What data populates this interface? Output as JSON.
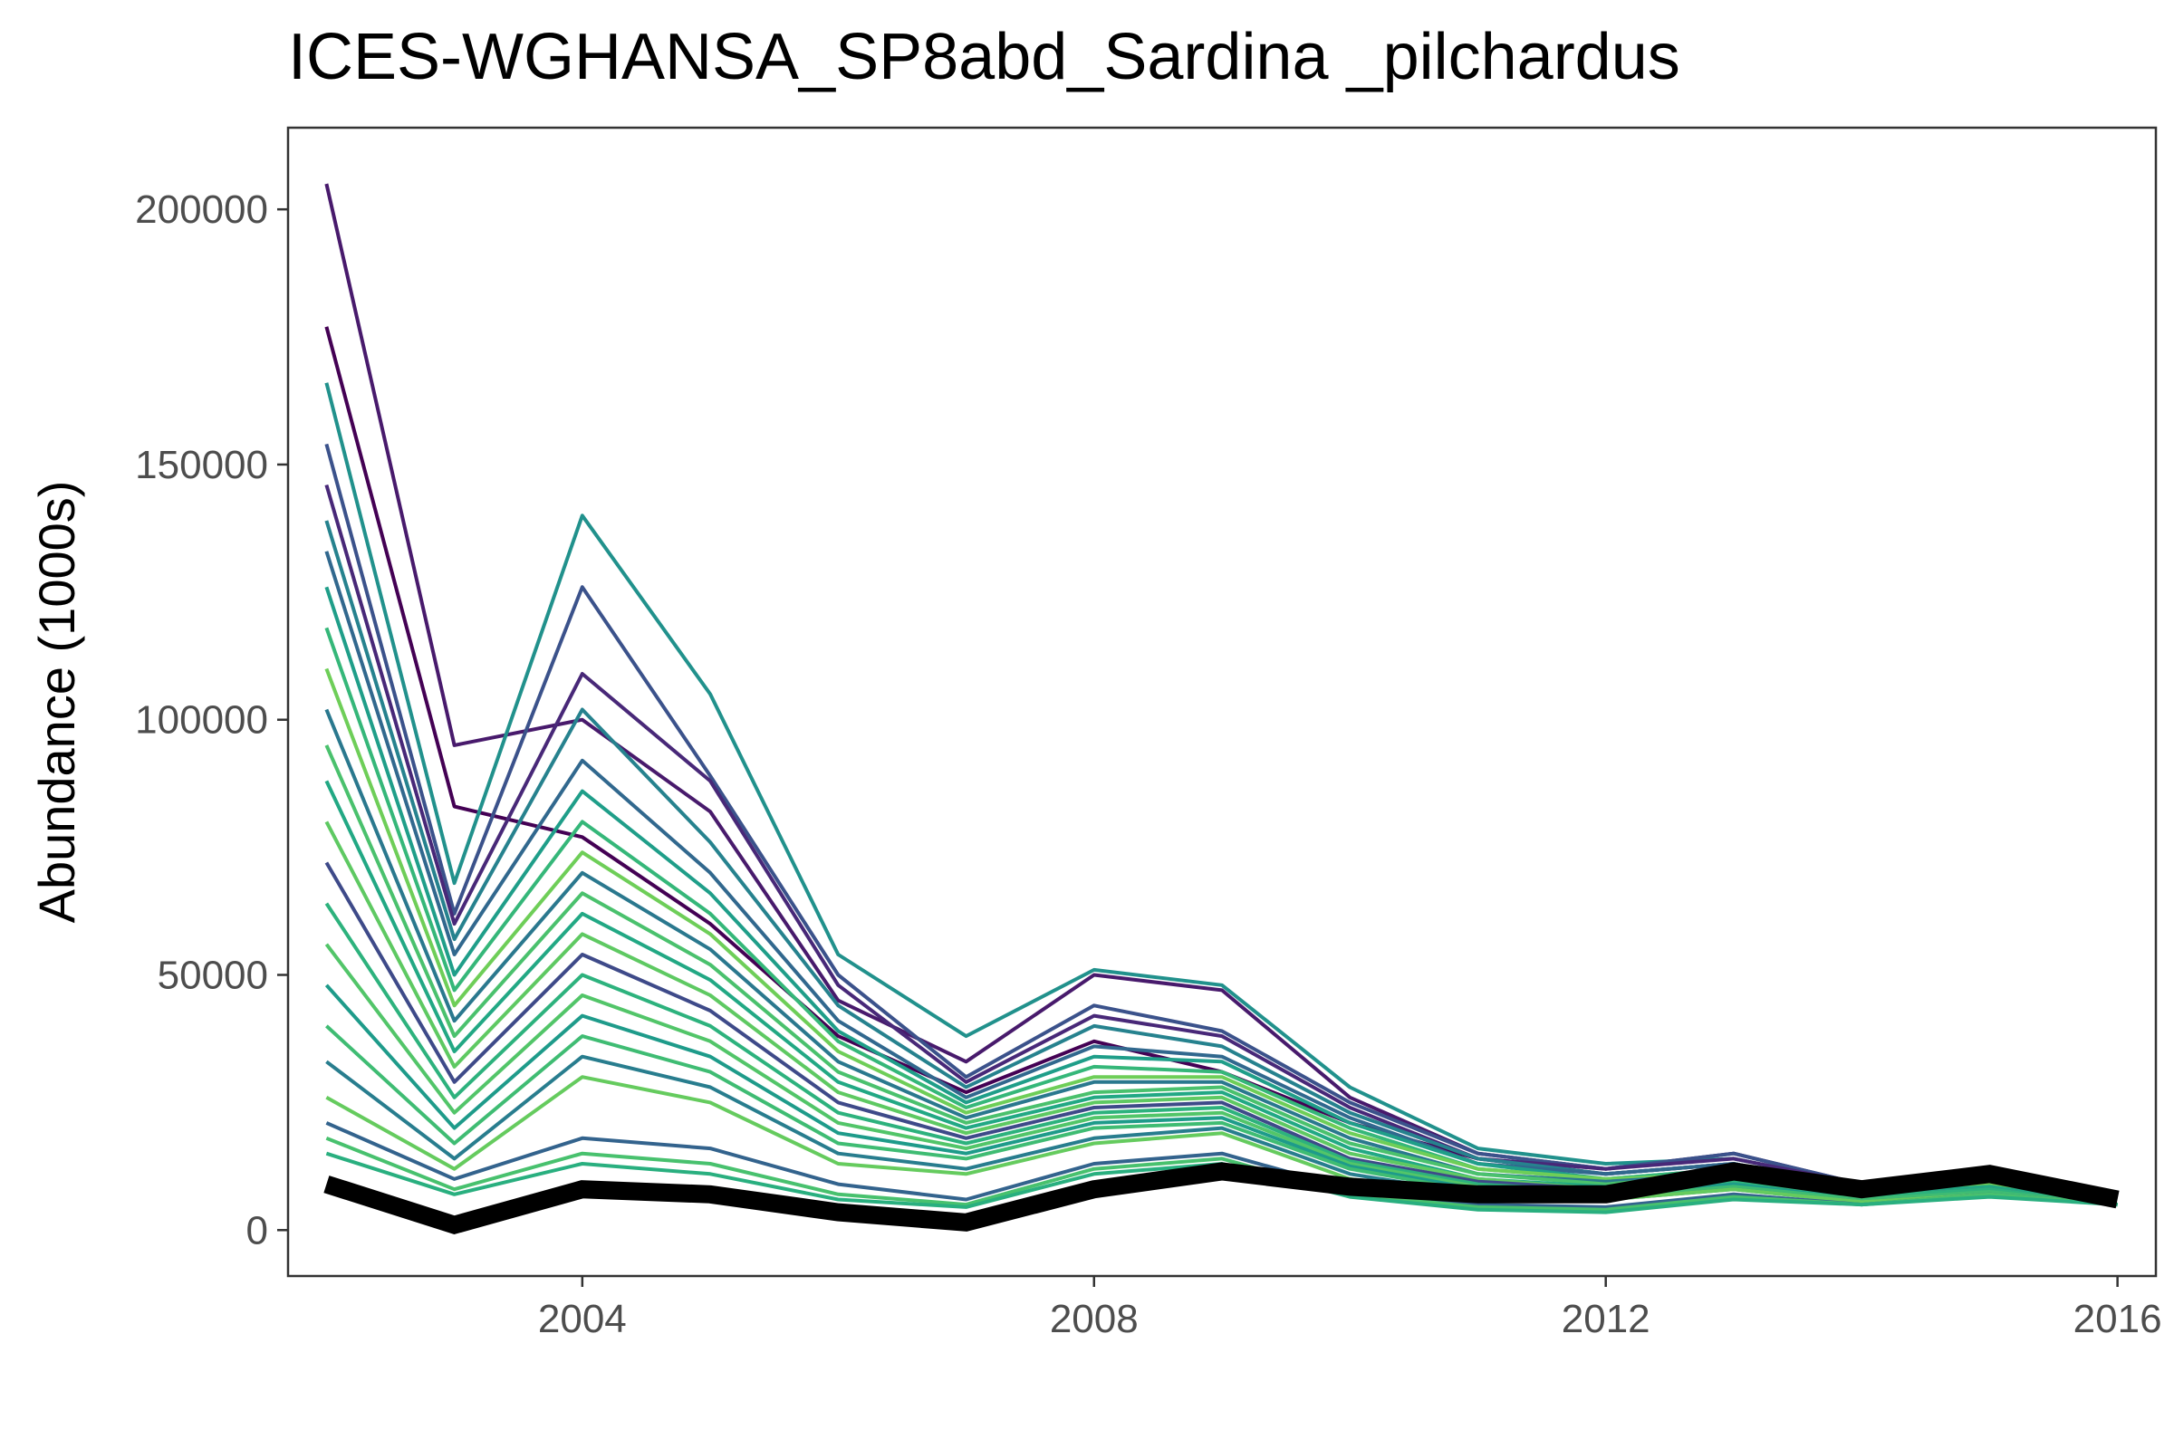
{
  "chart_data": {
    "type": "line",
    "title": "ICES-WGHANSA_SP8abd_Sardina _pilchardus",
    "xlabel": "",
    "ylabel": "Abundance (1000s)",
    "xlim": [
      2001.7,
      2016.3
    ],
    "ylim": [
      -9000,
      216000
    ],
    "x_ticks": [
      2004,
      2008,
      2012,
      2016
    ],
    "x_tick_labels": [
      "2004",
      "2008",
      "2012",
      "2016"
    ],
    "y_ticks": [
      0,
      50000,
      100000,
      150000,
      200000
    ],
    "y_tick_labels": [
      "0",
      "50000",
      "100000",
      "150000",
      "200000"
    ],
    "grid": false,
    "legend": "none",
    "x": [
      2002,
      2003,
      2004,
      2005,
      2006,
      2007,
      2008,
      2009,
      2010,
      2011,
      2012,
      2013,
      2014,
      2015,
      2016
    ],
    "series": [
      {
        "color": "#481a6c",
        "values": [
          205000,
          95000,
          100000,
          82000,
          45000,
          33000,
          50000,
          47000,
          26000,
          15000,
          12000,
          15000,
          9000,
          10000,
          5000
        ]
      },
      {
        "color": "#440154",
        "values": [
          177000,
          83000,
          77000,
          60000,
          38000,
          27000,
          37000,
          31000,
          21000,
          14000,
          11000,
          13000,
          8000,
          9000,
          5000
        ]
      },
      {
        "color": "#21918c",
        "values": [
          166000,
          68000,
          140000,
          105000,
          54000,
          38000,
          51000,
          48000,
          28000,
          16000,
          13000,
          14000,
          9000,
          10000,
          5000
        ]
      },
      {
        "color": "#3b528b",
        "values": [
          154000,
          62000,
          126000,
          89000,
          50000,
          30000,
          44000,
          39000,
          25000,
          15000,
          12000,
          15000,
          9000,
          10000,
          5000
        ]
      },
      {
        "color": "#482878",
        "values": [
          146000,
          60000,
          109000,
          88000,
          48000,
          29000,
          42000,
          38000,
          24000,
          14000,
          12000,
          14000,
          9000,
          10000,
          5000
        ]
      },
      {
        "color": "#26828e",
        "values": [
          139000,
          57000,
          102000,
          76000,
          44000,
          28000,
          40000,
          36000,
          23000,
          14000,
          11000,
          13000,
          8000,
          9000,
          5000
        ]
      },
      {
        "color": "#31688e",
        "values": [
          133000,
          54000,
          92000,
          70000,
          41000,
          26000,
          36000,
          34000,
          22000,
          13000,
          11000,
          13000,
          8000,
          9000,
          5000
        ]
      },
      {
        "color": "#1f9e89",
        "values": [
          126000,
          50000,
          86000,
          66000,
          39000,
          25000,
          34000,
          33000,
          21000,
          13000,
          10000,
          12000,
          8000,
          9000,
          5000
        ]
      },
      {
        "color": "#35b779",
        "values": [
          118000,
          47000,
          80000,
          62000,
          37000,
          24000,
          32000,
          31000,
          20000,
          12000,
          10000,
          12000,
          8000,
          9000,
          5000
        ]
      },
      {
        "color": "#6ece58",
        "values": [
          110000,
          44000,
          74000,
          58000,
          35000,
          23000,
          30000,
          30000,
          19000,
          12000,
          10000,
          11000,
          7000,
          9000,
          5000
        ]
      },
      {
        "color": "#2a788e",
        "values": [
          102000,
          41000,
          70000,
          55000,
          33000,
          22000,
          29000,
          29000,
          18000,
          11000,
          9500,
          11000,
          7000,
          8500,
          5000
        ]
      },
      {
        "color": "#4ac16d",
        "values": [
          95000,
          38000,
          66000,
          52000,
          31000,
          21000,
          27000,
          28000,
          17000,
          11000,
          9000,
          11000,
          7000,
          8500,
          5000
        ]
      },
      {
        "color": "#22a884",
        "values": [
          88000,
          35000,
          62000,
          49000,
          29000,
          20000,
          26000,
          27000,
          16000,
          10000,
          8500,
          10500,
          7000,
          8500,
          5000
        ]
      },
      {
        "color": "#5ec962",
        "values": [
          80000,
          32000,
          58000,
          46000,
          27000,
          19000,
          25000,
          26000,
          15000,
          10000,
          8000,
          10000,
          6500,
          8000,
          5000
        ]
      },
      {
        "color": "#3e4a89",
        "values": [
          72000,
          29000,
          54000,
          43000,
          25000,
          18000,
          24000,
          25000,
          14000,
          9500,
          8000,
          10000,
          6500,
          8000,
          5000
        ]
      },
      {
        "color": "#2db27d",
        "values": [
          64000,
          26000,
          50000,
          40000,
          23000,
          17000,
          23000,
          24000,
          13500,
          9000,
          7500,
          9500,
          6500,
          8000,
          5000
        ]
      },
      {
        "color": "#52c569",
        "values": [
          56000,
          23000,
          46000,
          37000,
          21000,
          16000,
          22000,
          23000,
          13000,
          8500,
          7000,
          9000,
          6000,
          7500,
          5000
        ]
      },
      {
        "color": "#1e9b8a",
        "values": [
          48000,
          20000,
          42000,
          34000,
          19000,
          15000,
          21000,
          22000,
          12500,
          8000,
          7000,
          9000,
          6000,
          7500,
          5000
        ]
      },
      {
        "color": "#3fbc73",
        "values": [
          40000,
          17000,
          38000,
          31000,
          17000,
          14000,
          20000,
          21000,
          12000,
          7500,
          6500,
          8500,
          6000,
          7500,
          5000
        ]
      },
      {
        "color": "#287d8e",
        "values": [
          33000,
          14000,
          34000,
          28000,
          15000,
          12000,
          18000,
          20000,
          11000,
          7000,
          6000,
          8000,
          5500,
          7000,
          5000
        ]
      },
      {
        "color": "#65cb5e",
        "values": [
          26000,
          12000,
          30000,
          25000,
          13000,
          11000,
          17000,
          19000,
          10000,
          6500,
          6000,
          8000,
          5500,
          7000,
          5000
        ]
      },
      {
        "color": "#33638d",
        "values": [
          21000,
          10000,
          18000,
          16000,
          9000,
          6000,
          13000,
          15000,
          8000,
          5000,
          4500,
          7000,
          5000,
          7000,
          5000
        ]
      },
      {
        "color": "#48c16e",
        "values": [
          18000,
          8000,
          15000,
          13000,
          7000,
          5000,
          12000,
          14000,
          7000,
          4500,
          4000,
          6500,
          5000,
          7000,
          5000
        ]
      },
      {
        "color": "#29af7f",
        "values": [
          15000,
          7000,
          13000,
          11000,
          6000,
          4500,
          11000,
          13000,
          6500,
          4000,
          3500,
          6000,
          5000,
          6500,
          5000
        ]
      },
      {
        "color": "#000000",
        "values": [
          9000,
          1000,
          8000,
          7000,
          3500,
          1500,
          8000,
          11500,
          8500,
          7000,
          7000,
          11500,
          8000,
          11000,
          6000
        ]
      }
    ]
  }
}
